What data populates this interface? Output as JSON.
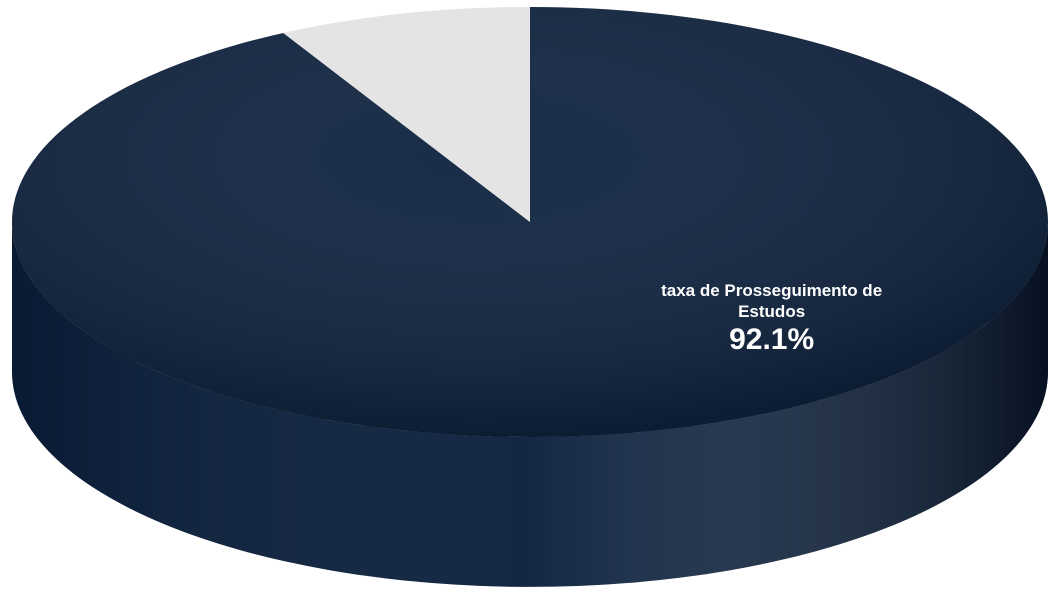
{
  "chart_data": {
    "type": "pie",
    "categories": [
      "taxa de Prosseguimento de Estudos",
      null
    ],
    "values": [
      92.1,
      7.9
    ],
    "value_labels": [
      "92.1%",
      null
    ],
    "colors": [
      "#0a1f3c",
      "#e4e4e4"
    ]
  }
}
